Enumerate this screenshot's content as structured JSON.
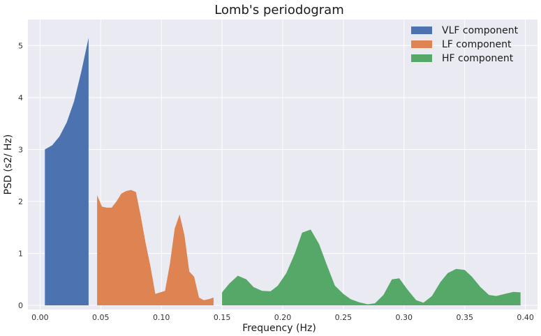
{
  "chart_data": {
    "type": "area",
    "title": "Lomb's periodogram",
    "xlabel": "Frequency (Hz)",
    "ylabel": "PSD (s2/ Hz)",
    "xlim": [
      -0.01,
      0.41
    ],
    "ylim": [
      -0.08,
      5.5
    ],
    "grid": true,
    "legend_position": "top-right",
    "x_ticks": [
      0.0,
      0.05,
      0.1,
      0.15,
      0.2,
      0.25,
      0.3,
      0.35,
      0.4
    ],
    "x_tick_labels": [
      "0.00",
      "0.05",
      "0.10",
      "0.15",
      "0.20",
      "0.25",
      "0.30",
      "0.35",
      "0.40"
    ],
    "y_ticks": [
      0,
      1,
      2,
      3,
      4,
      5
    ],
    "y_tick_labels": [
      "0",
      "1",
      "2",
      "3",
      "4",
      "5"
    ],
    "series": [
      {
        "name": "VLF component",
        "color": "#4c72b0",
        "x": [
          0.004,
          0.01,
          0.016,
          0.022,
          0.028,
          0.034,
          0.04
        ],
        "y": [
          3.0,
          3.08,
          3.25,
          3.52,
          3.92,
          4.5,
          5.15
        ]
      },
      {
        "name": "LF component",
        "color": "#dd8452",
        "x": [
          0.047,
          0.051,
          0.055,
          0.059,
          0.063,
          0.067,
          0.071,
          0.075,
          0.079,
          0.083,
          0.087,
          0.091,
          0.095,
          0.099,
          0.103,
          0.107,
          0.111,
          0.115,
          0.119,
          0.123,
          0.127,
          0.131,
          0.135,
          0.139,
          0.143
        ],
        "y": [
          2.12,
          1.9,
          1.88,
          1.88,
          2.0,
          2.15,
          2.2,
          2.22,
          2.18,
          1.72,
          1.2,
          0.75,
          0.22,
          0.25,
          0.28,
          0.8,
          1.48,
          1.75,
          1.35,
          0.65,
          0.55,
          0.15,
          0.1,
          0.12,
          0.15
        ]
      },
      {
        "name": "HF component",
        "color": "#55a868",
        "x": [
          0.15,
          0.156,
          0.163,
          0.17,
          0.176,
          0.183,
          0.19,
          0.196,
          0.203,
          0.21,
          0.216,
          0.223,
          0.23,
          0.236,
          0.243,
          0.25,
          0.256,
          0.263,
          0.27,
          0.276,
          0.283,
          0.29,
          0.296,
          0.303,
          0.31,
          0.316,
          0.323,
          0.33,
          0.336,
          0.343,
          0.35,
          0.356,
          0.363,
          0.37,
          0.376,
          0.383,
          0.39,
          0.396
        ],
        "y": [
          0.25,
          0.42,
          0.57,
          0.5,
          0.35,
          0.28,
          0.27,
          0.38,
          0.62,
          1.0,
          1.4,
          1.46,
          1.18,
          0.8,
          0.38,
          0.22,
          0.12,
          0.06,
          0.02,
          0.04,
          0.2,
          0.5,
          0.52,
          0.3,
          0.1,
          0.05,
          0.18,
          0.45,
          0.62,
          0.7,
          0.68,
          0.55,
          0.35,
          0.2,
          0.18,
          0.22,
          0.26,
          0.25
        ]
      }
    ]
  }
}
